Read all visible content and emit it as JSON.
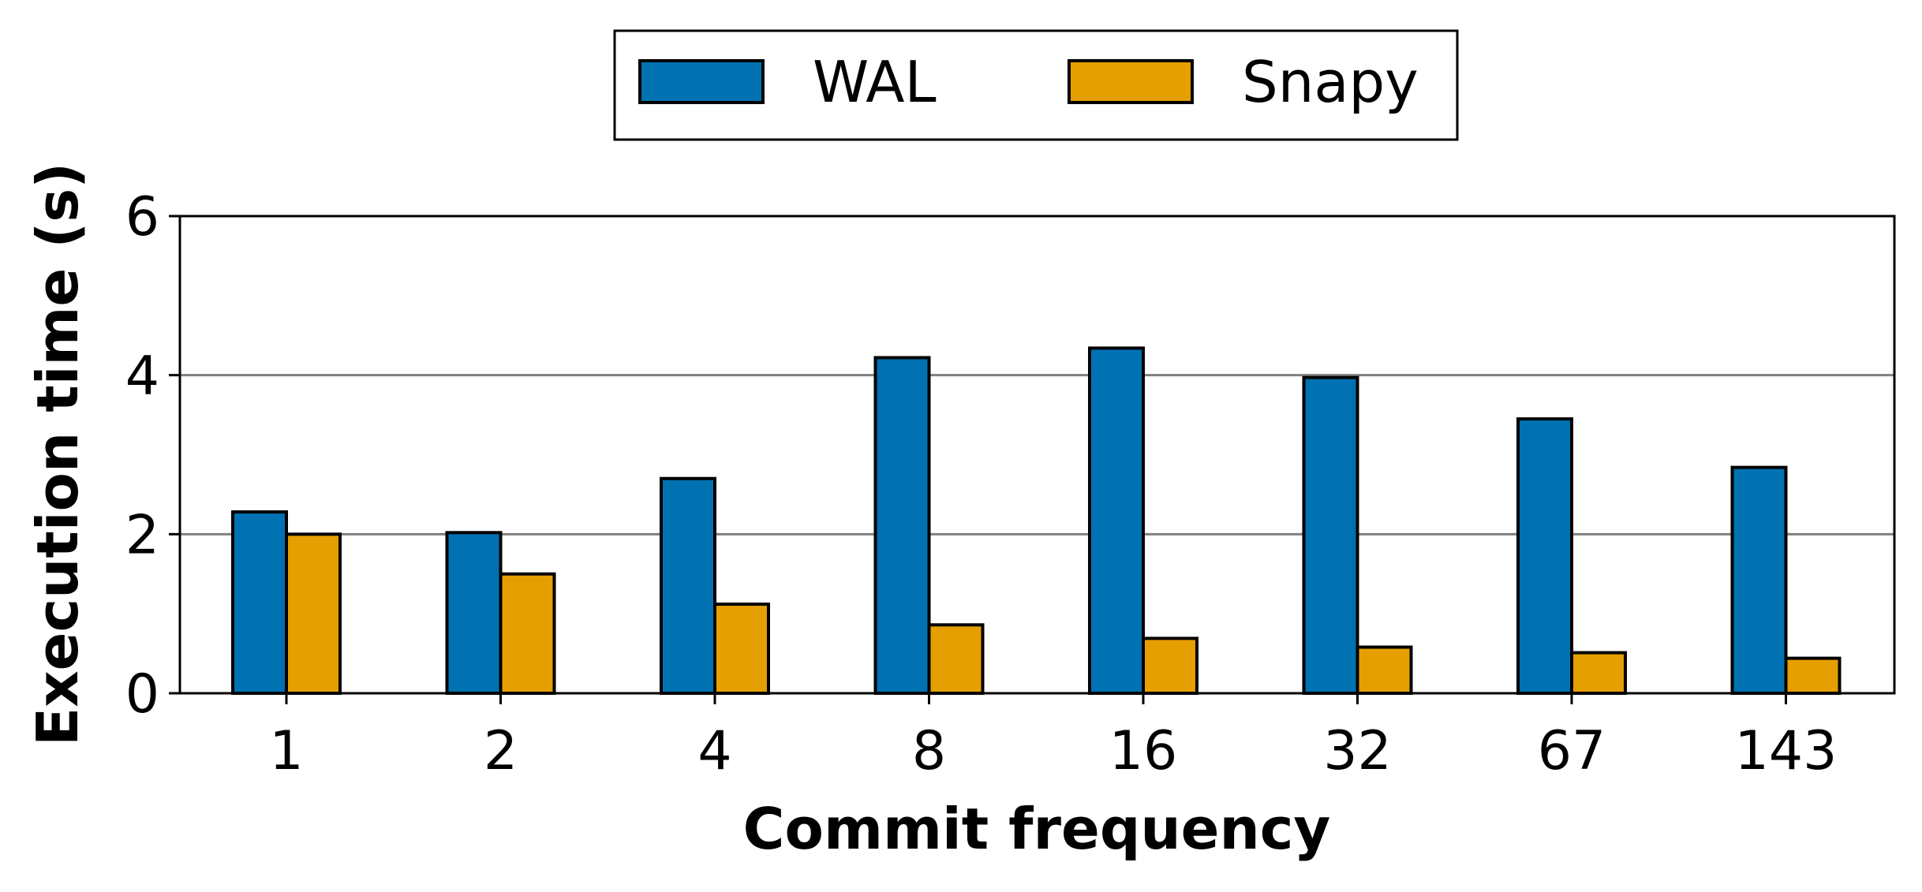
{
  "chart_data": {
    "type": "bar",
    "categories": [
      "1",
      "2",
      "4",
      "8",
      "16",
      "32",
      "67",
      "143"
    ],
    "series": [
      {
        "name": "WAL",
        "values": [
          2.28,
          2.02,
          2.7,
          4.22,
          4.34,
          3.97,
          3.45,
          2.84
        ],
        "color": "#0072B2"
      },
      {
        "name": "Snapy",
        "values": [
          2.0,
          1.5,
          1.12,
          0.86,
          0.69,
          0.58,
          0.51,
          0.44
        ],
        "color": "#E69F00"
      }
    ],
    "xlabel": "Commit frequency",
    "ylabel": "Execution time (s)",
    "ylim": [
      0,
      6
    ],
    "yticks": [
      0,
      2,
      4,
      6
    ],
    "grid": "horizontal",
    "legend_placement": "top-center"
  }
}
